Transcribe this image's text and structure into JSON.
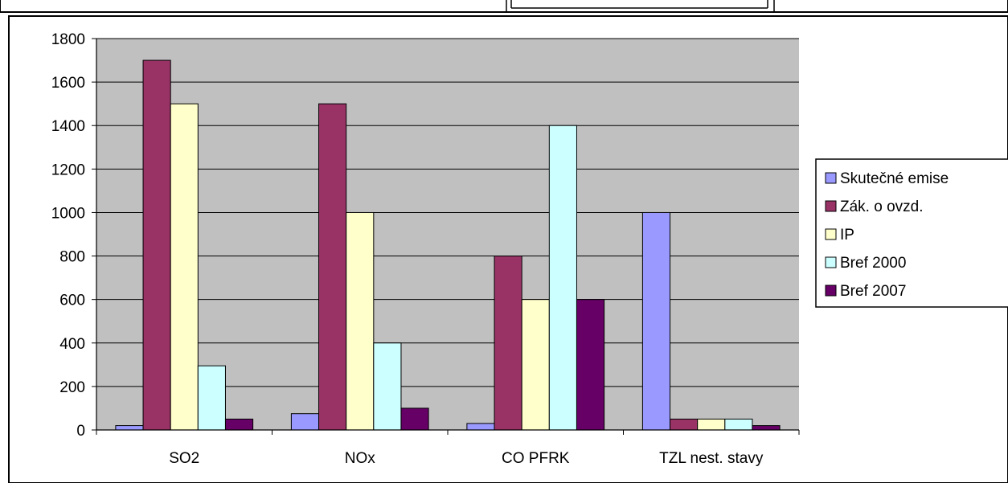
{
  "chart_data": {
    "type": "bar",
    "categories": [
      "SO2",
      "NOx",
      "CO PFRK",
      "TZL nest. stavy"
    ],
    "series": [
      {
        "name": "Skutečné emise",
        "color": "#9999ff",
        "values": [
          20,
          75,
          30,
          1000
        ]
      },
      {
        "name": "Zák. o ovzd.",
        "color": "#993366",
        "values": [
          1700,
          1500,
          800,
          50
        ]
      },
      {
        "name": "IP",
        "color": "#ffffcc",
        "values": [
          1500,
          1000,
          600,
          50
        ]
      },
      {
        "name": "Bref 2000",
        "color": "#ccffff",
        "values": [
          295,
          400,
          1400,
          50
        ]
      },
      {
        "name": "Bref 2007",
        "color": "#660066",
        "values": [
          50,
          100,
          600,
          20
        ]
      }
    ],
    "ylim": [
      0,
      1800
    ],
    "yticks": [
      0,
      200,
      400,
      600,
      800,
      1000,
      1200,
      1400,
      1600,
      1800
    ],
    "ytick_labels": [
      "0",
      "200",
      "400",
      "600",
      "800",
      "1000",
      "1200",
      "1400",
      "1600",
      "1800"
    ],
    "grid": true,
    "plot_background": "#c0c0c0",
    "legend_position": "right",
    "title": "",
    "xlabel": "",
    "ylabel": ""
  }
}
